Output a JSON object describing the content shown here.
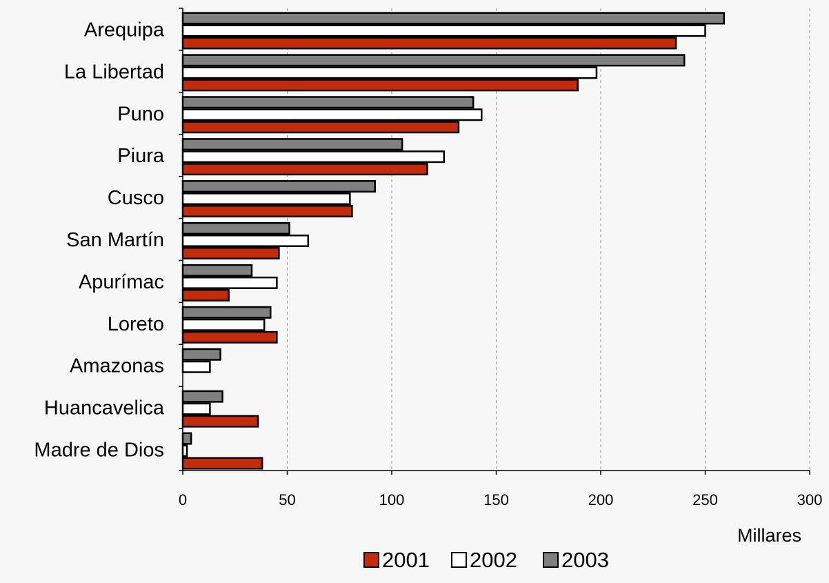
{
  "chart_data": {
    "type": "bar",
    "orientation": "horizontal",
    "categories": [
      "Arequipa",
      "La Libertad",
      "Puno",
      "Piura",
      "Cusco",
      "San Martín",
      "Apurímac",
      "Loreto",
      "Amazonas",
      "Huancavelica",
      "Madre de Dios"
    ],
    "series": [
      {
        "name": "2001",
        "color": "#c42b0a",
        "values": [
          236,
          189,
          132,
          117,
          81,
          46,
          22,
          45,
          0,
          36,
          38
        ]
      },
      {
        "name": "2002",
        "color": "#ffffff",
        "values": [
          250,
          198,
          143,
          125,
          80,
          60,
          45,
          39,
          13,
          13,
          2
        ]
      },
      {
        "name": "2003",
        "color": "#808080",
        "values": [
          259,
          240,
          139,
          105,
          92,
          51,
          33,
          42,
          18,
          19,
          4
        ]
      }
    ],
    "xlabel": "Millares",
    "xlim": [
      0,
      300
    ],
    "xticks": [
      "0",
      "50",
      "100",
      "150",
      "200",
      "250",
      "300"
    ],
    "grid": "vertical dashed",
    "legend_position": "bottom"
  }
}
